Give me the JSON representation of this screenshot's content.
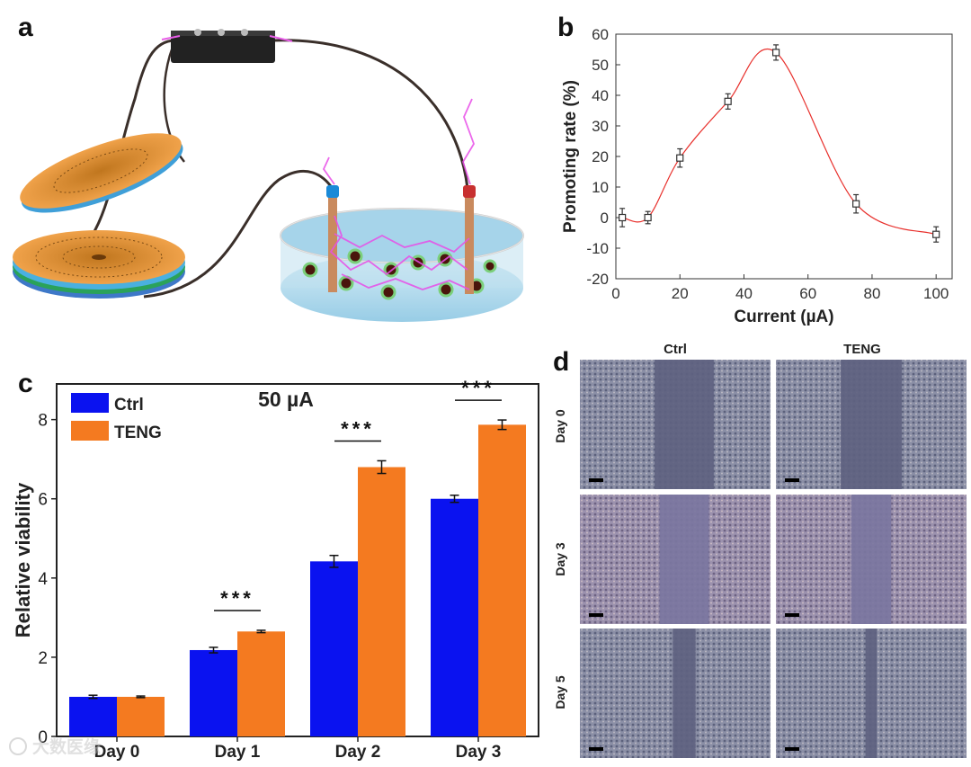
{
  "panels": {
    "a": "a",
    "b": "b",
    "c": "c",
    "d": "d"
  },
  "colors": {
    "ctrl": "#0a12f0",
    "teng": "#f47a20",
    "curve": "#e8302c"
  },
  "watermark": "大数医缘",
  "chart_data": [
    {
      "id": "b",
      "type": "line",
      "xlabel": "Current (µA)",
      "ylabel": "Promoting rate (%)",
      "xlim": [
        0,
        105
      ],
      "ylim": [
        -20,
        60
      ],
      "xticks": [
        "0",
        "20",
        "40",
        "60",
        "80",
        "100"
      ],
      "yticks": [
        "-20",
        "-10",
        "0",
        "10",
        "20",
        "30",
        "40",
        "50",
        "60"
      ],
      "x": [
        2,
        10,
        20,
        35,
        50,
        75,
        100
      ],
      "y": [
        0,
        0,
        19.5,
        38,
        54,
        4.5,
        -5.5
      ],
      "err": [
        3,
        2,
        3,
        2.5,
        2.5,
        3,
        2.5
      ],
      "marker": "open-square"
    },
    {
      "id": "c",
      "type": "bar",
      "title": "50 µA",
      "ylabel": "Relative viability",
      "ylim": [
        0,
        8.9
      ],
      "yticks": [
        "0",
        "2",
        "4",
        "6",
        "8"
      ],
      "categories": [
        "Day 0",
        "Day 1",
        "Day 2",
        "Day 3"
      ],
      "series": [
        {
          "name": "Ctrl",
          "values": [
            1.0,
            2.18,
            4.42,
            6.0
          ],
          "err": [
            0.04,
            0.07,
            0.15,
            0.09
          ]
        },
        {
          "name": "TENG",
          "values": [
            1.0,
            2.65,
            6.8,
            7.87
          ],
          "err": [
            0.02,
            0.03,
            0.16,
            0.12
          ]
        }
      ],
      "significance": [
        {
          "category": "Day 1",
          "label": "***"
        },
        {
          "category": "Day 2",
          "label": "***"
        },
        {
          "category": "Day 3",
          "label": "***"
        }
      ],
      "legend_position": "top-left"
    }
  ],
  "micrographs": {
    "columns": [
      "Ctrl",
      "TENG"
    ],
    "rows": [
      "Day 0",
      "Day 3",
      "Day 5"
    ],
    "gap_widths": [
      [
        0.31,
        0.32
      ],
      [
        0.26,
        0.21
      ],
      [
        0.12,
        0.06
      ]
    ]
  }
}
